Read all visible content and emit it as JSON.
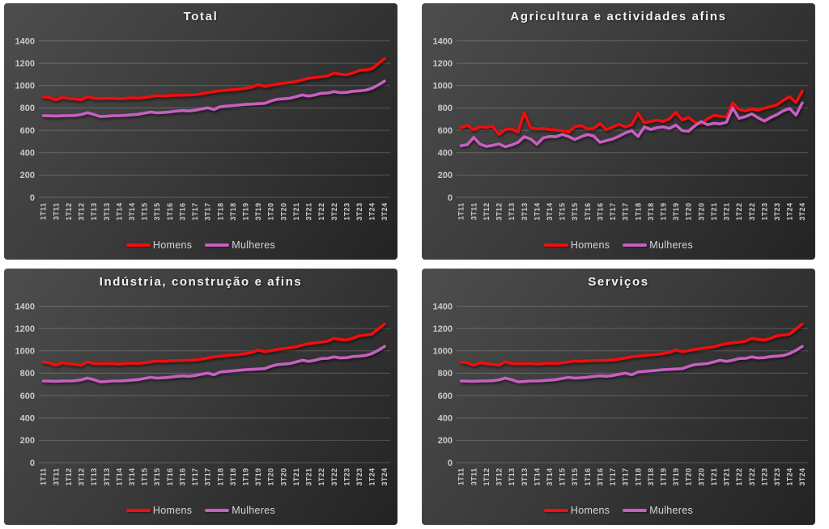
{
  "page": {
    "background": "#ffffff"
  },
  "charts": [
    {
      "title": "Total",
      "dataset": "total"
    },
    {
      "title": "Agricultura e actividades afins",
      "dataset": "agricultura"
    },
    {
      "title": "Indústria, construção e afins",
      "dataset": "total"
    },
    {
      "title": "Serviços",
      "dataset": "total"
    }
  ],
  "chart_data": {
    "type": "line",
    "title_note": "four small multiples sharing the same axes",
    "x": [
      "1T11",
      "2T11",
      "3T11",
      "4T11",
      "1T12",
      "2T12",
      "3T12",
      "4T12",
      "1T13",
      "2T13",
      "3T13",
      "4T13",
      "1T14",
      "2T14",
      "3T14",
      "4T14",
      "1T15",
      "2T15",
      "3T15",
      "4T15",
      "1T16",
      "2T16",
      "3T16",
      "4T16",
      "1T17",
      "2T17",
      "3T17",
      "4T17",
      "1T18",
      "2T18",
      "3T18",
      "4T18",
      "1T19",
      "2T19",
      "3T19",
      "4T19",
      "1T20",
      "2T20",
      "3T20",
      "4T20",
      "1T21",
      "2T21",
      "3T21",
      "4T21",
      "1T22",
      "2T22",
      "3T22",
      "4T22",
      "1T23",
      "2T23",
      "3T23",
      "4T23",
      "1T24",
      "2T24",
      "3T24"
    ],
    "x_tick_step": 2,
    "x_tick_labels": [
      "1T11",
      "3T11",
      "1T12",
      "3T12",
      "1T13",
      "3T13",
      "1T14",
      "3T14",
      "1T15",
      "3T15",
      "1T16",
      "3T16",
      "1T17",
      "3T17",
      "1T18",
      "3T18",
      "1T19",
      "3T19",
      "1T20",
      "3T20",
      "1T21",
      "3T21",
      "1T22",
      "3T22",
      "1T23",
      "3T23",
      "1T24"
    ],
    "ylim": [
      0,
      1400
    ],
    "yticks": [
      0,
      200,
      400,
      600,
      800,
      1000,
      1200,
      1400
    ],
    "grid": "horizontal",
    "legend_position": "bottom",
    "legend": [
      "Homens",
      "Mulheres"
    ],
    "colors": {
      "homens": "#F20D0D",
      "mulheres": "#C75FC1"
    },
    "axis_text_color": "#c9c9c9",
    "datasets": {
      "total": {
        "series": [
          {
            "name": "Homens",
            "values": [
              900,
              892,
              871,
              894,
              884,
              880,
              871,
              902,
              886,
              884,
              885,
              887,
              881,
              886,
              891,
              886,
              893,
              901,
              910,
              906,
              911,
              913,
              914,
              916,
              918,
              926,
              936,
              946,
              953,
              959,
              964,
              968,
              976,
              986,
              1008,
              993,
              1001,
              1013,
              1021,
              1028,
              1036,
              1052,
              1065,
              1072,
              1078,
              1086,
              1112,
              1101,
              1097,
              1113,
              1135,
              1141,
              1150,
              1196,
              1240
            ]
          },
          {
            "name": "Mulheres",
            "values": [
              731,
              729,
              728,
              730,
              731,
              733,
              741,
              757,
              742,
              723,
              726,
              731,
              731,
              734,
              739,
              743,
              753,
              763,
              756,
              759,
              764,
              771,
              776,
              773,
              779,
              791,
              801,
              786,
              811,
              816,
              821,
              826,
              831,
              834,
              838,
              841,
              862,
              877,
              881,
              886,
              901,
              916,
              906,
              916,
              931,
              933,
              946,
              936,
              939,
              949,
              953,
              959,
              976,
              1005,
              1040
            ]
          }
        ]
      },
      "agricultura": {
        "series": [
          {
            "name": "Homens",
            "values": [
              622,
              645,
              606,
              632,
              626,
              637,
              562,
              607,
              612,
              583,
              758,
              622,
              612,
              617,
              607,
              602,
              597,
              582,
              632,
              642,
              612,
              617,
              660,
              607,
              629,
              654,
              630,
              650,
              750,
              667,
              679,
              691,
              679,
              703,
              760,
              692,
              714,
              672,
              655,
              703,
              733,
              726,
              717,
              845,
              785,
              773,
              790,
              780,
              797,
              813,
              828,
              868,
              900,
              848,
              950
            ]
          },
          {
            "name": "Mulheres",
            "values": [
              462,
              472,
              537,
              477,
              455,
              465,
              478,
              452,
              468,
              492,
              543,
              522,
              475,
              532,
              545,
              542,
              563,
              545,
              517,
              542,
              562,
              548,
              492,
              508,
              522,
              547,
              577,
              597,
              545,
              630,
              607,
              623,
              630,
              617,
              647,
              597,
              592,
              640,
              678,
              650,
              662,
              657,
              672,
              800,
              707,
              722,
              747,
              712,
              682,
              715,
              740,
              775,
              795,
              735,
              845
            ]
          }
        ]
      }
    }
  }
}
